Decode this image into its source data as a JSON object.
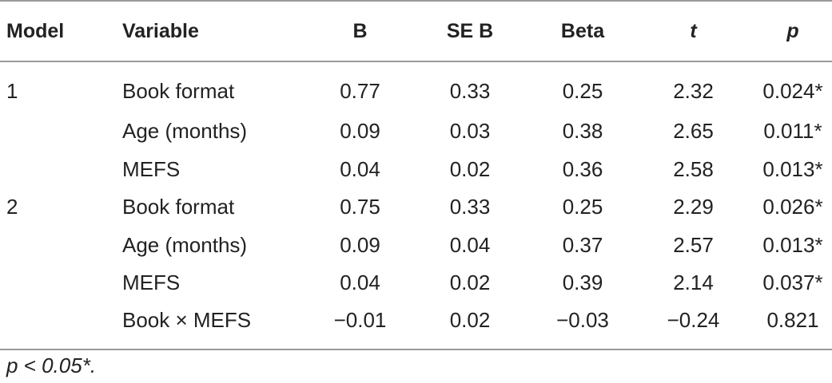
{
  "table": {
    "headers": {
      "model": "Model",
      "variable": "Variable",
      "b": "B",
      "se_b": "SE B",
      "beta": "Beta",
      "t": "t",
      "p": "p"
    },
    "rows": [
      {
        "model": "1",
        "variable": "Book format",
        "b": "0.77",
        "se_b": "0.33",
        "beta": "0.25",
        "t": "2.32",
        "p": "0.024*"
      },
      {
        "model": "",
        "variable": "Age (months)",
        "b": "0.09",
        "se_b": "0.03",
        "beta": "0.38",
        "t": "2.65",
        "p": "0.011*"
      },
      {
        "model": "",
        "variable": "MEFS",
        "b": "0.04",
        "se_b": "0.02",
        "beta": "0.36",
        "t": "2.58",
        "p": "0.013*"
      },
      {
        "model": "2",
        "variable": "Book format",
        "b": "0.75",
        "se_b": "0.33",
        "beta": "0.25",
        "t": "2.29",
        "p": "0.026*"
      },
      {
        "model": "",
        "variable": "Age (months)",
        "b": "0.09",
        "se_b": "0.04",
        "beta": "0.37",
        "t": "2.57",
        "p": "0.013*"
      },
      {
        "model": "",
        "variable": "MEFS",
        "b": "0.04",
        "se_b": "0.02",
        "beta": "0.39",
        "t": "2.14",
        "p": "0.037*"
      },
      {
        "model": "",
        "variable": "Book × MEFS",
        "b": "−0.01",
        "se_b": "0.02",
        "beta": "−0.03",
        "t": "−0.24",
        "p": "0.821"
      }
    ]
  },
  "footnote": "p < 0.05*."
}
